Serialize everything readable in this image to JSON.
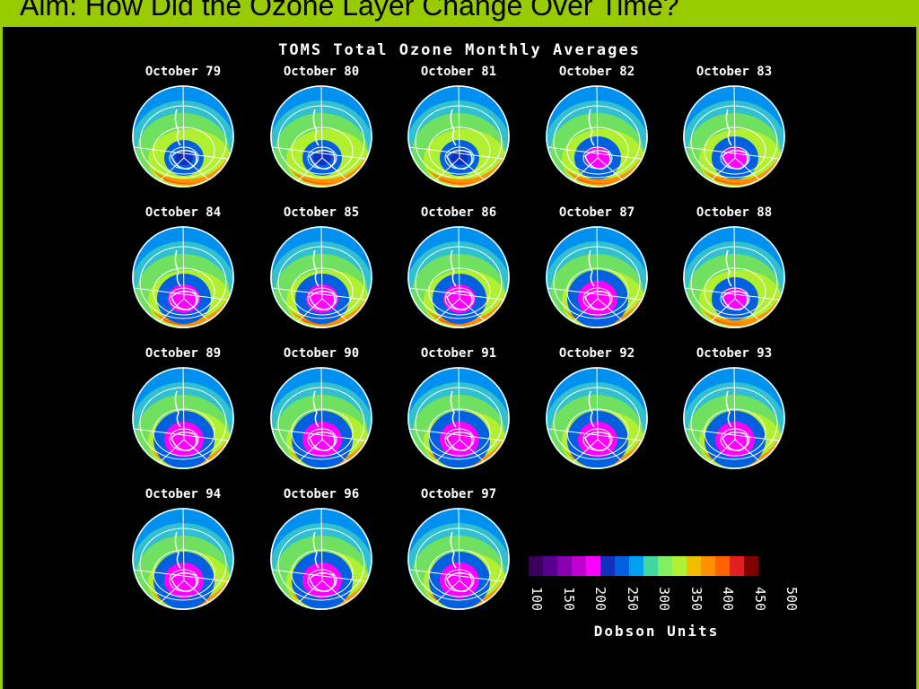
{
  "slide": {
    "title": "Aim: How Did the Ozone Layer Change Over Time?",
    "accent_color": "#99cc00"
  },
  "figure": {
    "title": "TOMS Total Ozone Monthly Averages",
    "panels": [
      {
        "label": "October 79",
        "hole": "light"
      },
      {
        "label": "October 80",
        "hole": "light"
      },
      {
        "label": "October 81",
        "hole": "light"
      },
      {
        "label": "October 82",
        "hole": "small"
      },
      {
        "label": "October 83",
        "hole": "small"
      },
      {
        "label": "October 84",
        "hole": "medium"
      },
      {
        "label": "October 85",
        "hole": "medium"
      },
      {
        "label": "October 86",
        "hole": "medium"
      },
      {
        "label": "October 87",
        "hole": "large"
      },
      {
        "label": "October 88",
        "hole": "small"
      },
      {
        "label": "October 89",
        "hole": "large"
      },
      {
        "label": "October 90",
        "hole": "large"
      },
      {
        "label": "October 91",
        "hole": "large"
      },
      {
        "label": "October 92",
        "hole": "large"
      },
      {
        "label": "October 93",
        "hole": "large"
      },
      {
        "label": "October 94",
        "hole": "large"
      },
      {
        "label": "October 96",
        "hole": "large"
      },
      {
        "label": "October 97",
        "hole": "large"
      }
    ],
    "legend": {
      "title": "Dobson Units",
      "ticks": [
        "100",
        "150",
        "200",
        "250",
        "300",
        "350",
        "400",
        "450",
        "500"
      ],
      "colors": [
        "#3a0060",
        "#5a0090",
        "#8a00b0",
        "#c000d0",
        "#ff00ff",
        "#1030c0",
        "#0060e0",
        "#00a0f0",
        "#40d8a0",
        "#80f060",
        "#b0f030",
        "#f0c000",
        "#ff9000",
        "#ff6000",
        "#e02020",
        "#800000"
      ]
    }
  }
}
